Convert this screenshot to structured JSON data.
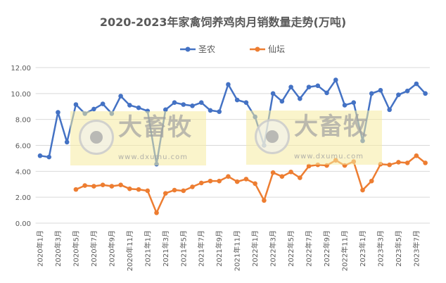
{
  "chart_data": {
    "type": "line",
    "title": "2020-2023年家禽饲养鸡肉月销数量走势(万吨)",
    "xlabel": "",
    "ylabel": "",
    "ylim": [
      0,
      12
    ],
    "yticks": [
      "0.00",
      "2.00",
      "4.00",
      "6.00",
      "8.00",
      "10.00",
      "12.00"
    ],
    "grid": true,
    "legend": "top",
    "categories": [
      "2020年1月",
      "2020年2月",
      "2020年3月",
      "2020年4月",
      "2020年5月",
      "2020年6月",
      "2020年7月",
      "2020年8月",
      "2020年9月",
      "2020年10月",
      "2020年11月",
      "2020年12月",
      "2021年1月",
      "2021年2月",
      "2021年3月",
      "2021年4月",
      "2021年5月",
      "2021年6月",
      "2021年7月",
      "2021年8月",
      "2021年9月",
      "2021年10月",
      "2021年11月",
      "2021年12月",
      "2022年1月",
      "2022年2月",
      "2022年3月",
      "2022年4月",
      "2022年5月",
      "2022年6月",
      "2022年7月",
      "2022年8月",
      "2022年9月",
      "2022年10月",
      "2022年11月",
      "2022年12月",
      "2023年1月",
      "2023年2月",
      "2023年3月",
      "2023年4月",
      "2023年5月",
      "2023年6月",
      "2023年7月",
      "2023年8月"
    ],
    "xtick_labels": [
      "2020年1月",
      "2020年3月",
      "2020年5月",
      "2020年7月",
      "2020年9月",
      "2020年11月",
      "2021年1月",
      "2021年3月",
      "2021年5月",
      "2021年7月",
      "2021年9月",
      "2021年11月",
      "2022年1月",
      "2022年3月",
      "2022年5月",
      "2022年7月",
      "2022年9月",
      "2022年11月",
      "2023年1月",
      "2023年3月",
      "2023年5月",
      "2023年7月"
    ],
    "series": [
      {
        "name": "圣农",
        "color": "#4472C4",
        "values": [
          5.2,
          5.1,
          8.55,
          6.25,
          9.15,
          8.45,
          8.8,
          9.2,
          8.45,
          9.8,
          9.1,
          8.9,
          8.65,
          4.55,
          8.75,
          9.3,
          9.15,
          9.05,
          9.3,
          8.7,
          8.6,
          10.7,
          9.5,
          9.3,
          8.2,
          6.0,
          10.0,
          9.4,
          10.5,
          9.6,
          10.5,
          10.6,
          10.05,
          11.05,
          9.1,
          9.3,
          6.35,
          10.0,
          10.25,
          8.75,
          9.9,
          10.2,
          10.75,
          10.0
        ]
      },
      {
        "name": "仙坛",
        "color": "#ED7D31",
        "values": [
          null,
          null,
          null,
          null,
          2.6,
          2.9,
          2.85,
          2.95,
          2.85,
          2.95,
          2.65,
          2.6,
          2.5,
          0.8,
          2.3,
          2.55,
          2.5,
          2.8,
          3.1,
          3.25,
          3.25,
          3.6,
          3.2,
          3.4,
          3.05,
          1.75,
          3.9,
          3.6,
          3.95,
          3.5,
          4.4,
          4.5,
          4.45,
          4.85,
          4.45,
          4.75,
          2.55,
          3.25,
          4.55,
          4.5,
          4.7,
          4.65,
          5.2,
          4.65
        ]
      }
    ]
  },
  "watermark": {
    "brand": "大畜牧",
    "url": "www.dxumu.com"
  }
}
